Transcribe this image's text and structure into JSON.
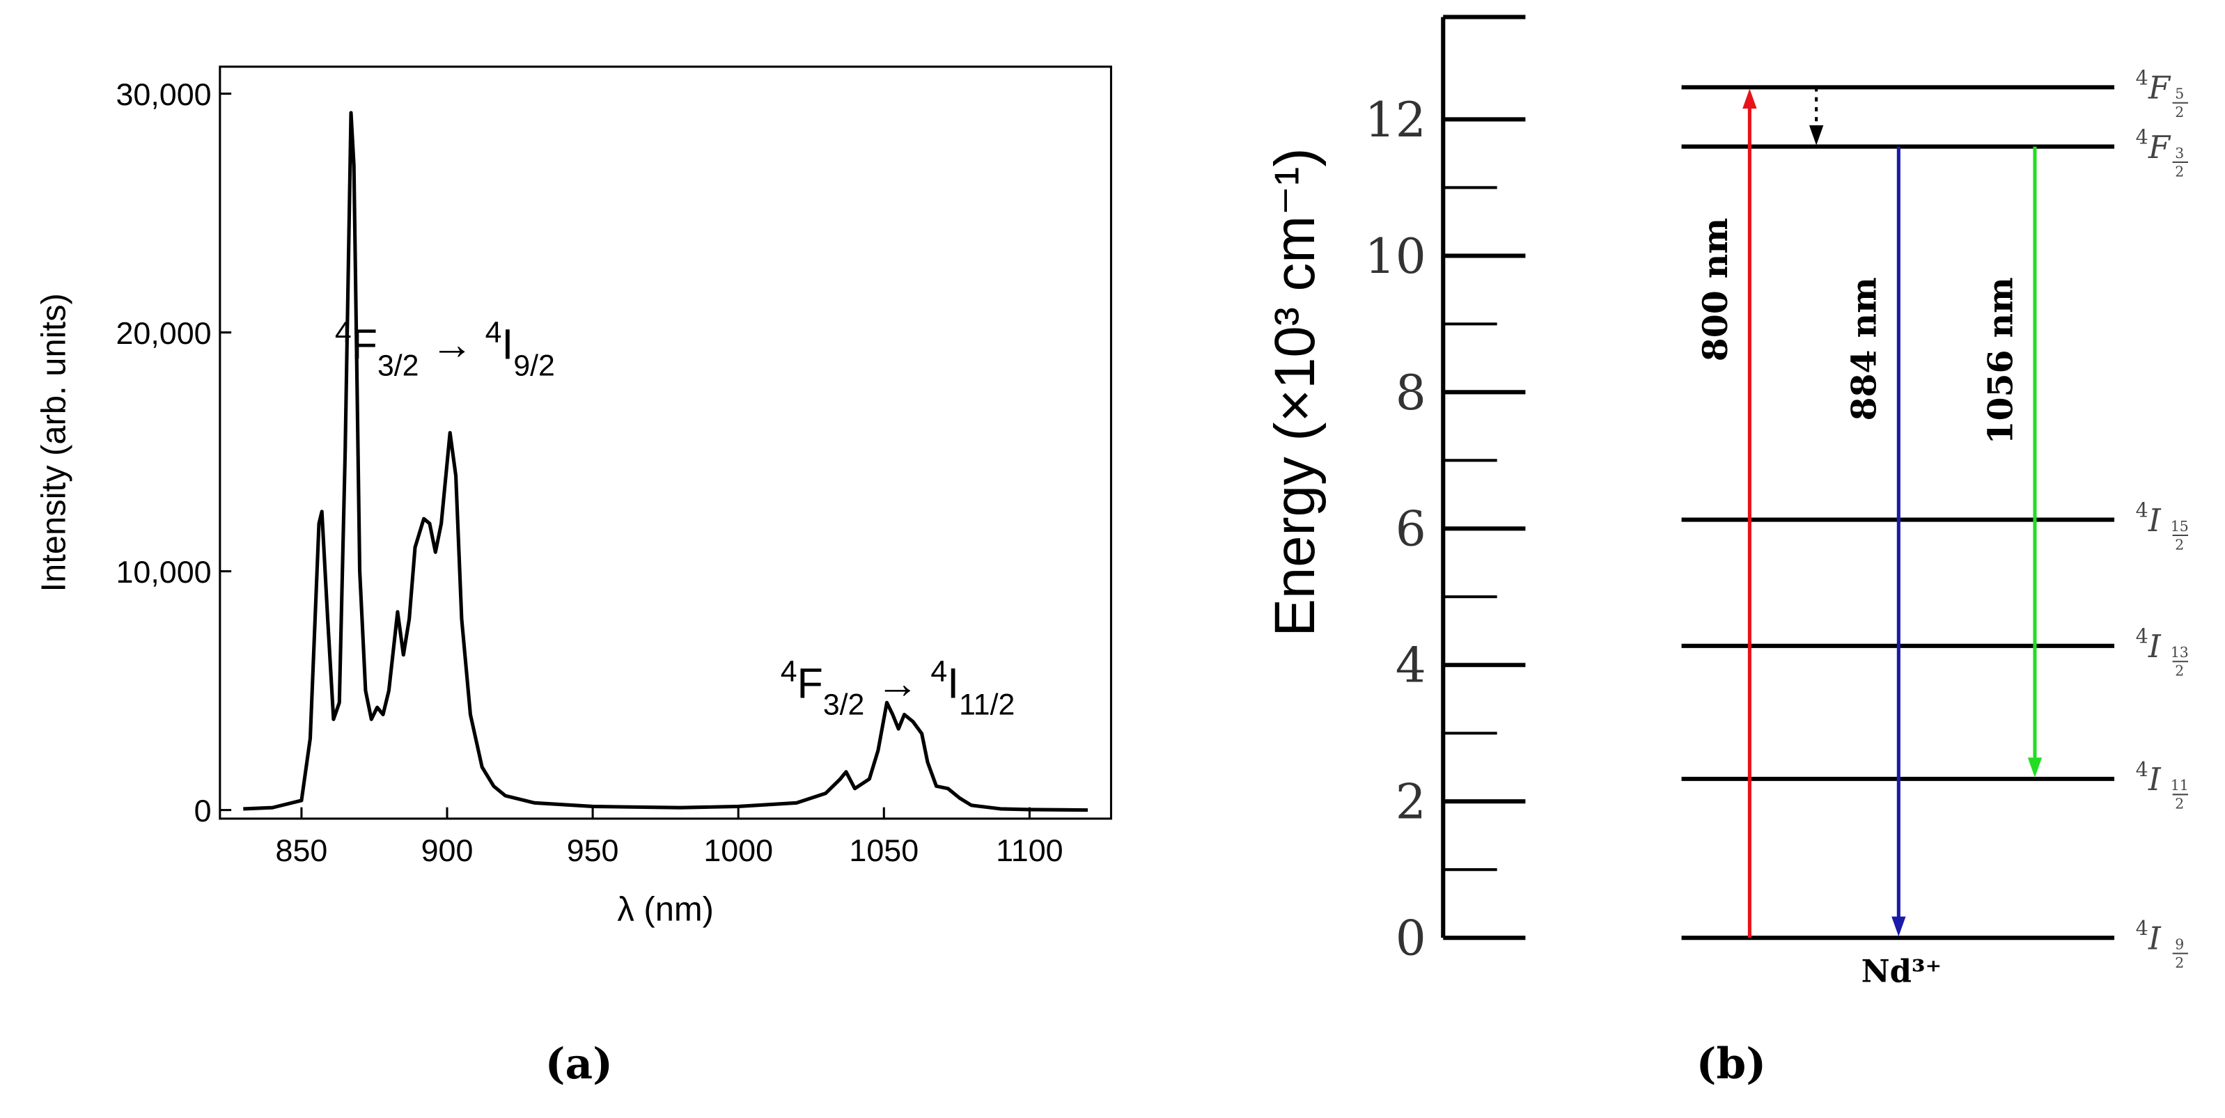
{
  "chart_data": [
    {
      "type": "line",
      "panel_label": "(a)",
      "x_label": "λ (nm)",
      "y_label": "Intensity (arb. units)",
      "xlim": [
        822,
        1128
      ],
      "ylim": [
        -360,
        31130
      ],
      "xticks": [
        850,
        900,
        950,
        1000,
        1050,
        1100
      ],
      "yticks": [
        0,
        {
          "value": 10000,
          "label": "10,000"
        },
        {
          "value": 20000,
          "label": "20,000"
        },
        {
          "value": 30000,
          "label": "30,000"
        }
      ],
      "annotations": [
        [
          "4",
          "F",
          "3/2",
          " → ",
          "4",
          "I",
          "9/2"
        ],
        [
          "4",
          "F",
          "3/2",
          " → ",
          "4",
          "I",
          "11/2"
        ]
      ],
      "series": [
        {
          "name": "spectrum",
          "color": "#000000",
          "x": [
            830,
            840,
            850,
            853,
            856,
            857,
            859,
            861,
            863,
            865,
            867,
            868,
            870,
            872,
            874,
            876,
            878,
            880,
            883,
            885,
            887,
            889,
            892,
            894,
            896,
            898,
            901,
            903,
            905,
            908,
            912,
            916,
            920,
            930,
            950,
            980,
            1000,
            1020,
            1030,
            1035,
            1037,
            1040,
            1045,
            1048,
            1051,
            1053,
            1055,
            1057,
            1060,
            1063,
            1065,
            1068,
            1072,
            1076,
            1080,
            1090,
            1100,
            1120
          ],
          "values": [
            50,
            100,
            400,
            3000,
            12000,
            12500,
            8000,
            3800,
            4500,
            15000,
            29200,
            27000,
            10000,
            5000,
            3800,
            4300,
            4000,
            5000,
            8300,
            6500,
            8000,
            11000,
            12200,
            12000,
            10800,
            12000,
            15800,
            14000,
            8000,
            4000,
            1800,
            1000,
            600,
            300,
            150,
            100,
            150,
            300,
            700,
            1300,
            1600,
            900,
            1300,
            2500,
            4500,
            4000,
            3400,
            4000,
            3700,
            3200,
            2000,
            1000,
            900,
            500,
            200,
            50,
            20,
            0
          ]
        }
      ]
    },
    {
      "type": "energy-levels",
      "panel_label": "(b)",
      "y_label": "Energy (×10³ cm⁻¹)",
      "ylim": [
        0,
        13.5
      ],
      "yticks": [
        0,
        2,
        4,
        6,
        8,
        10,
        12
      ],
      "species": "Nd³⁺",
      "levels": [
        {
          "label": [
            "4",
            "I",
            "9",
            "2"
          ],
          "energy": 0
        },
        {
          "label": [
            "4",
            "I",
            "11",
            "2"
          ],
          "energy": 2.33
        },
        {
          "label": [
            "4",
            "I",
            "13",
            "2"
          ],
          "energy": 4.28
        },
        {
          "label": [
            "4",
            "I",
            "15",
            "2"
          ],
          "energy": 6.13
        },
        {
          "label": [
            "4",
            "F",
            "3",
            "2"
          ],
          "energy": 11.6
        },
        {
          "label": [
            "4",
            "F",
            "5",
            "2"
          ],
          "energy": 12.47
        }
      ],
      "transitions": [
        {
          "from": 0,
          "to": 5,
          "label": "800 nm",
          "color": "#e8121a"
        },
        {
          "from": 5,
          "to": 4,
          "color": "#000000",
          "dotted": true
        },
        {
          "from": 4,
          "to": 0,
          "label": "884 nm",
          "color": "#1a1aa8"
        },
        {
          "from": 4,
          "to": 1,
          "label": "1056 nm",
          "color": "#22dd22"
        }
      ]
    }
  ]
}
